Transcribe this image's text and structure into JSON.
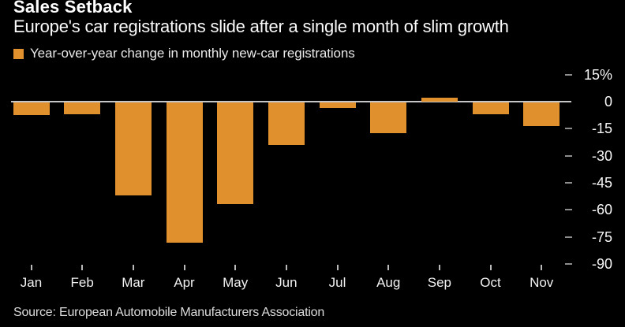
{
  "header": {
    "title": "Sales Setback",
    "subtitle": "Europe's car registrations slide after a single month of slim growth"
  },
  "legend": {
    "label": "Year-over-year change in monthly new-car registrations",
    "swatch_color": "#e0902c"
  },
  "chart_data": {
    "type": "bar",
    "title": "Sales Setback",
    "subtitle": "Europe's car registrations slide after a single month of slim growth",
    "series_name": "Year-over-year change in monthly new-car registrations",
    "categories": [
      "Jan",
      "Feb",
      "Mar",
      "Apr",
      "May",
      "Jun",
      "Jul",
      "Aug",
      "Sep",
      "Oct",
      "Nov"
    ],
    "values": [
      -7.4,
      -7.2,
      -51.8,
      -78.3,
      -56.8,
      -24.1,
      -3.7,
      -17.6,
      1.1,
      -7.1,
      -13.5
    ],
    "unit": "%",
    "xlabel": "",
    "ylabel": "",
    "ylim": [
      -90,
      15
    ],
    "yticks": [
      15,
      0,
      -15,
      -30,
      -45,
      -60,
      -75,
      -90
    ],
    "ytick_labels": [
      "15%",
      "0",
      "-15",
      "-30",
      "-45",
      "-60",
      "-75",
      "-90"
    ],
    "bar_color": "#e0902c",
    "background_color": "#000000",
    "zero_line_color": "#c6c6c6",
    "grid": "zero-line-only",
    "legend_position": "top-left",
    "y_axis_side": "right"
  },
  "source": {
    "text": "Source: European Automobile Manufacturers Association"
  }
}
